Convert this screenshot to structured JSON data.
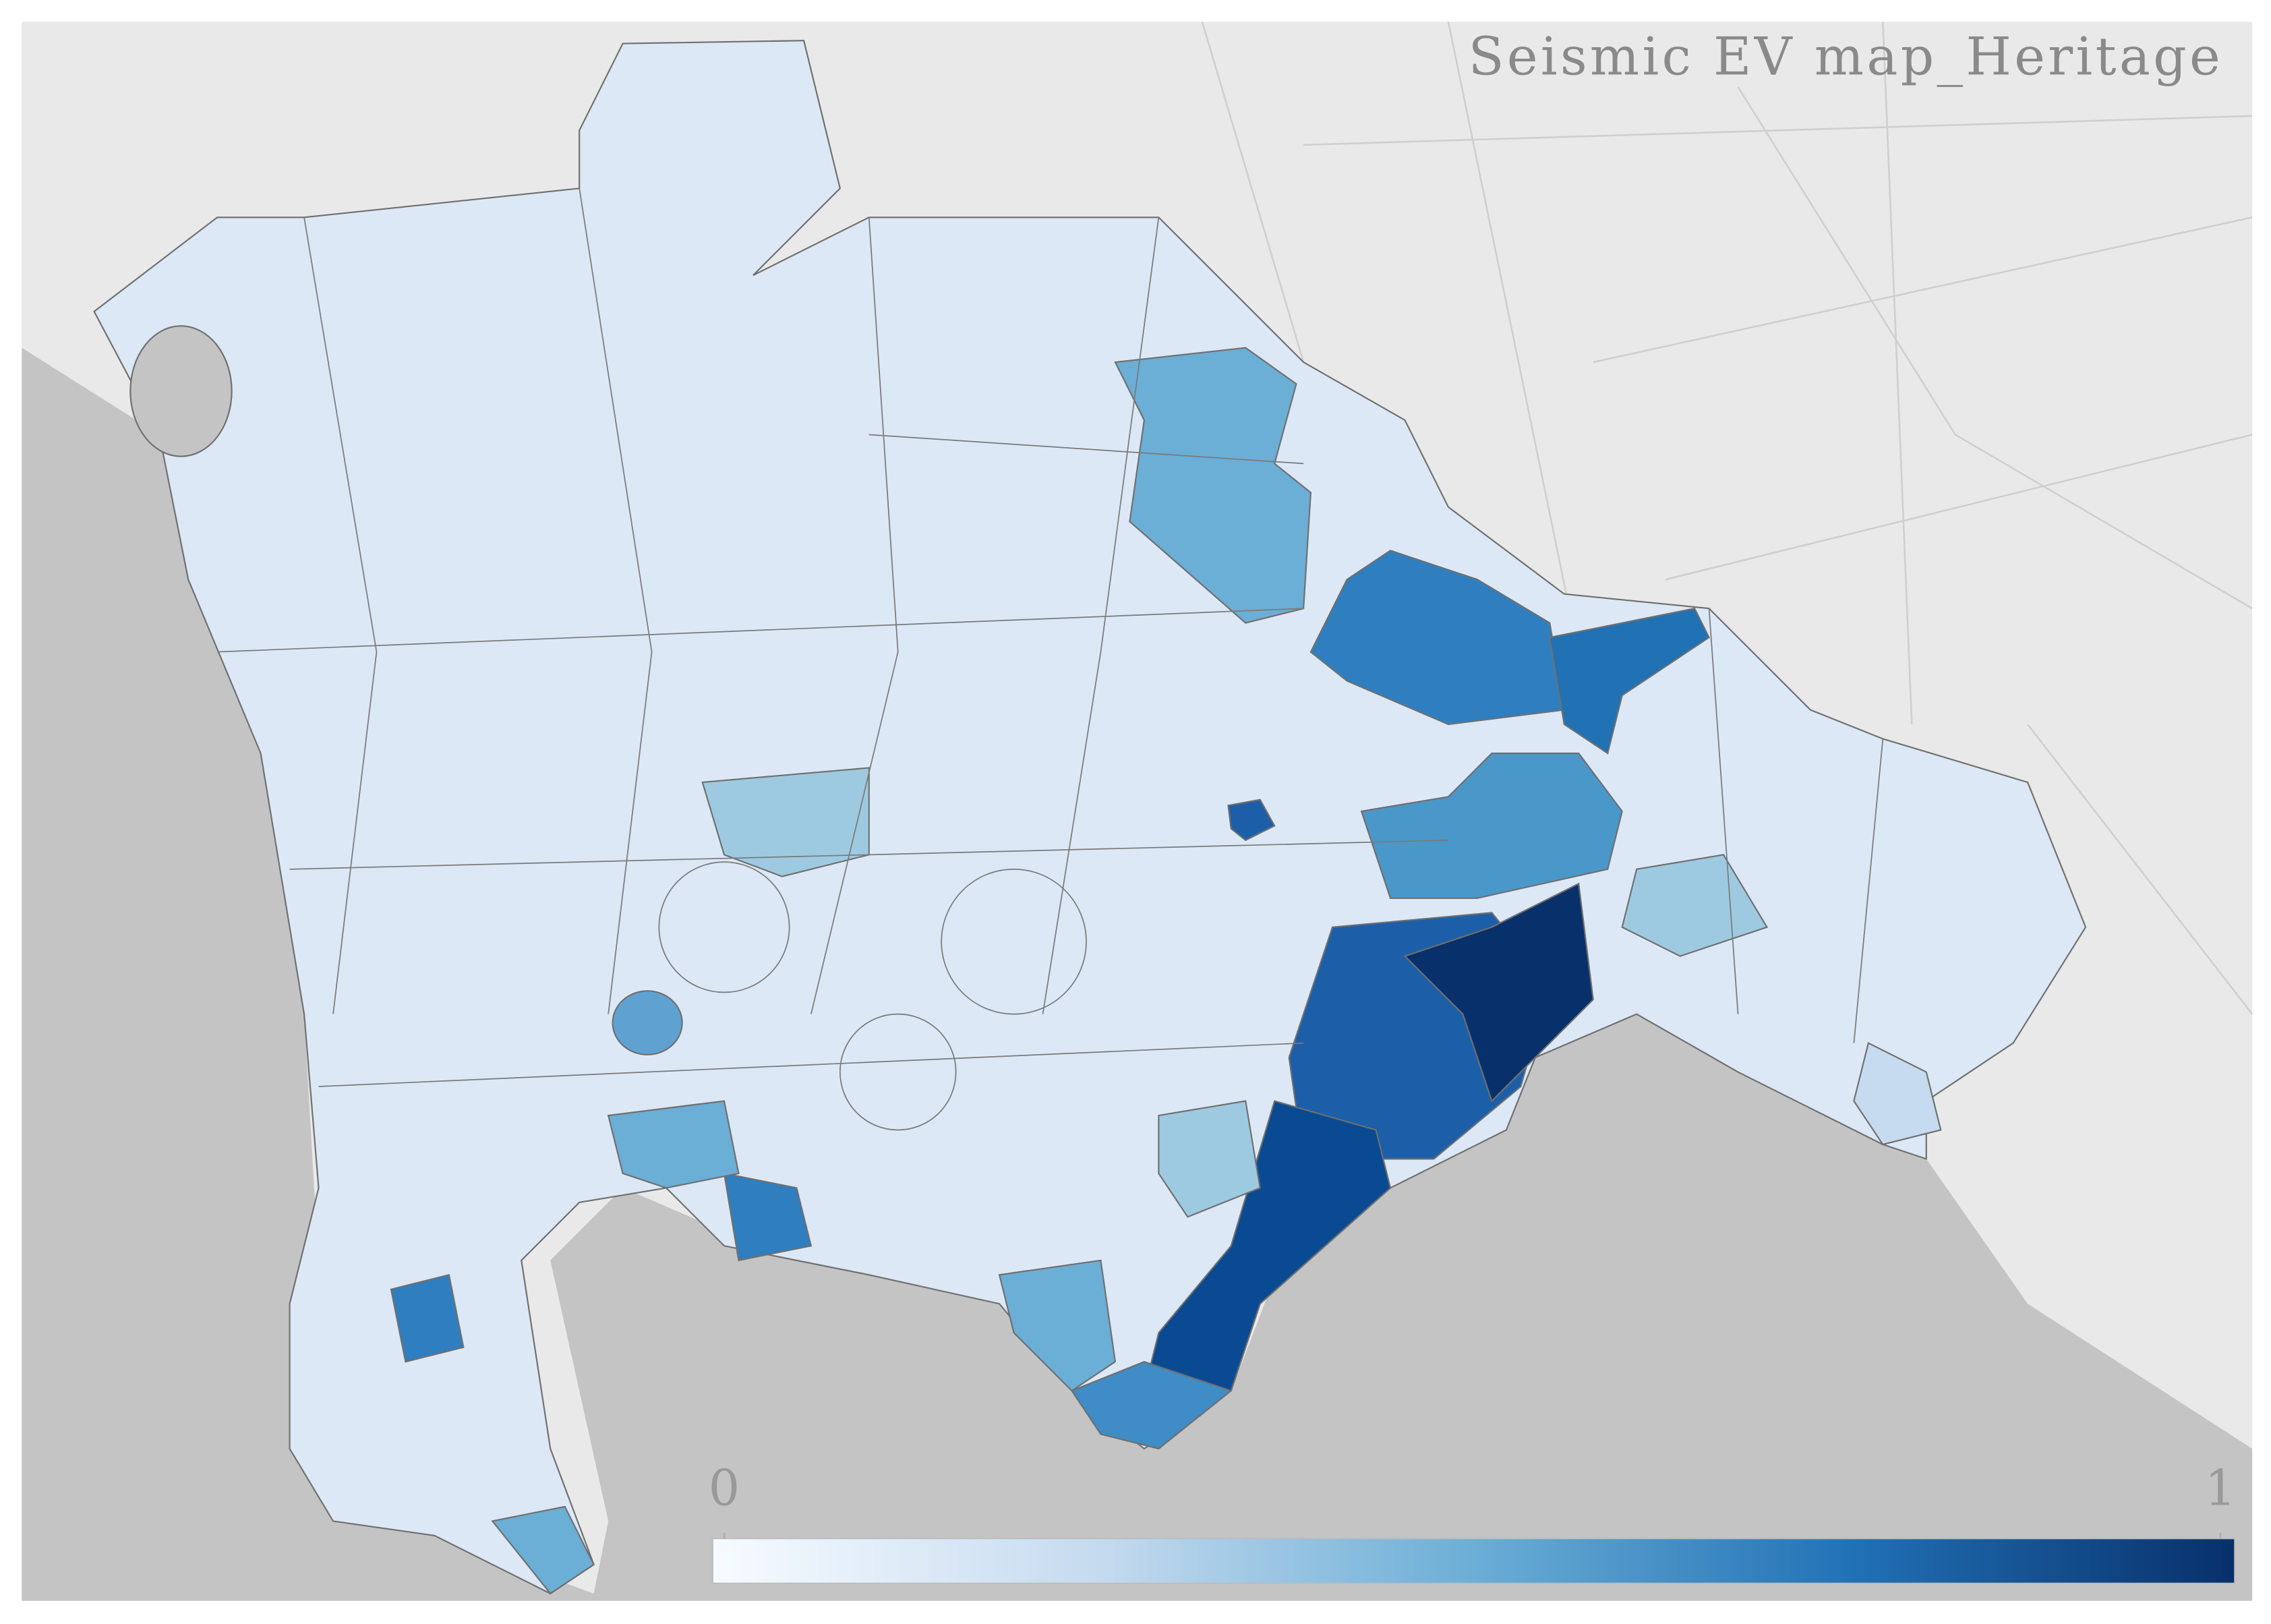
{
  "title": "Seismic EV map_Heritage",
  "colorbar": {
    "lim": [
      0,
      1
    ],
    "ticks": [
      0,
      1
    ]
  }
}
